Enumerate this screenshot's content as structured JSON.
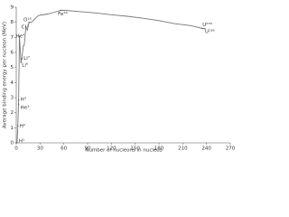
{
  "chart_data": {
    "type": "line",
    "xlabel": "Number of nucleons in nucleus",
    "ylabel": "Average binding energy per nucleon (MeV)",
    "color": "#777777",
    "x": [
      1,
      2,
      3,
      4,
      6,
      7,
      9,
      10,
      11,
      12,
      14,
      16,
      20,
      24,
      28,
      32,
      40,
      50,
      56,
      62,
      80,
      100,
      120,
      140,
      160,
      180,
      200,
      220,
      235,
      238
    ],
    "values": [
      0,
      1.11,
      2.83,
      7.07,
      5.33,
      5.6,
      6.46,
      6.48,
      6.93,
      7.68,
      7.48,
      7.98,
      8.03,
      8.26,
      8.45,
      8.49,
      8.55,
      8.7,
      8.79,
      8.79,
      8.71,
      8.62,
      8.5,
      8.4,
      8.27,
      8.11,
      7.91,
      7.78,
      7.59,
      7.57
    ],
    "annotations": [
      {
        "label": "H¹",
        "x": 1,
        "y": 0
      },
      {
        "label": "H²",
        "x": 2,
        "y": 1.11
      },
      {
        "label": "He³",
        "x": 3,
        "y": 2.57
      },
      {
        "label": "H³",
        "x": 3,
        "y": 2.83
      },
      {
        "label": "He⁴",
        "x": 4,
        "y": 7.07
      },
      {
        "label": "Li⁶",
        "x": 6,
        "y": 5.33
      },
      {
        "label": "Li⁷",
        "x": 7,
        "y": 5.6
      },
      {
        "label": "C¹²",
        "x": 12,
        "y": 7.68
      },
      {
        "label": "O¹⁶",
        "x": 16,
        "y": 7.98
      },
      {
        "label": "Fe⁵⁶",
        "x": 56,
        "y": 8.79
      },
      {
        "label": "U²³⁵",
        "x": 235,
        "y": 7.59
      },
      {
        "label": "U²³⁸",
        "x": 238,
        "y": 7.57
      }
    ],
    "xlim": [
      0,
      270
    ],
    "xticks": [
      0,
      30,
      60,
      90,
      120,
      150,
      180,
      210,
      240,
      270
    ],
    "ylim": [
      0,
      9
    ],
    "yticks": [
      0,
      1,
      2,
      3,
      4,
      5,
      6,
      7,
      8,
      9
    ]
  }
}
